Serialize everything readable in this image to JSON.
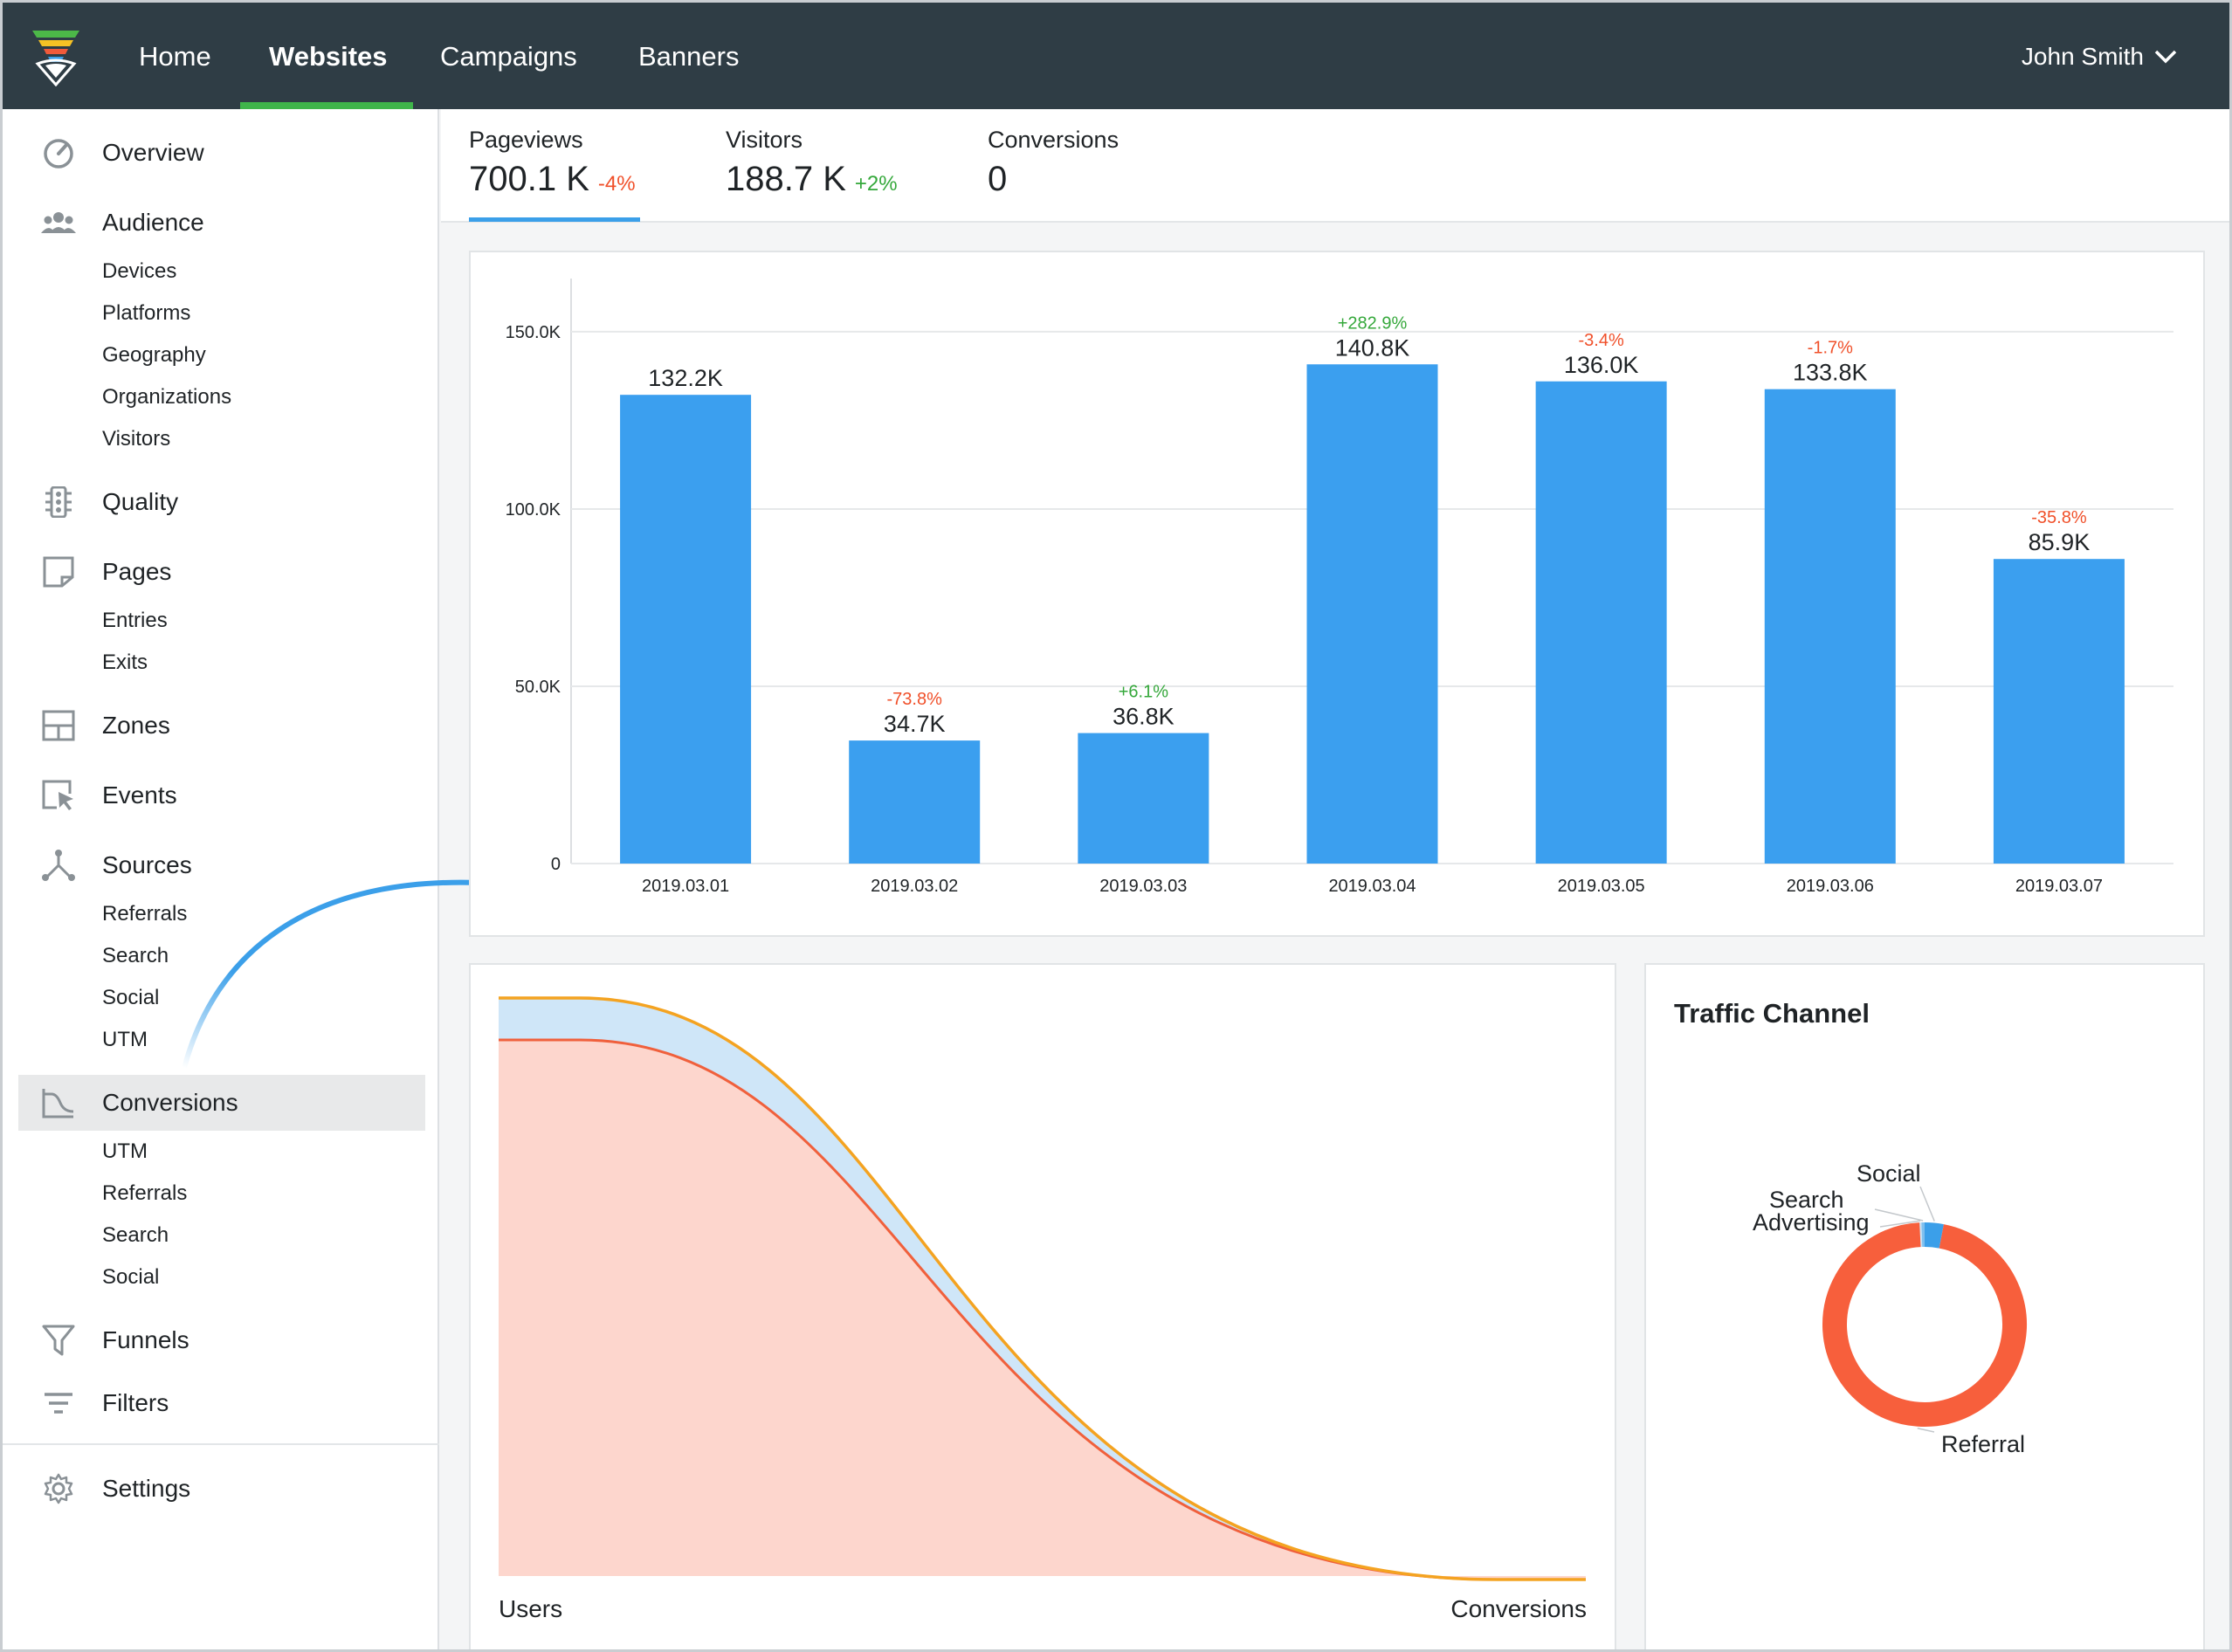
{
  "topnav": {
    "items": [
      {
        "label": "Home",
        "active": false
      },
      {
        "label": "Websites",
        "active": true
      },
      {
        "label": "Campaigns",
        "active": false
      },
      {
        "label": "Banners",
        "active": false
      }
    ],
    "user": "John Smith"
  },
  "sidebar": {
    "items": [
      {
        "label": "Overview",
        "icon": "speedometer-icon",
        "sub": []
      },
      {
        "label": "Audience",
        "icon": "people-icon",
        "sub": [
          "Devices",
          "Platforms",
          "Geography",
          "Organizations",
          "Visitors"
        ]
      },
      {
        "label": "Quality",
        "icon": "traffic-light-icon",
        "sub": []
      },
      {
        "label": "Pages",
        "icon": "page-icon",
        "sub": [
          "Entries",
          "Exits"
        ]
      },
      {
        "label": "Zones",
        "icon": "layout-grid-icon",
        "sub": []
      },
      {
        "label": "Events",
        "icon": "cursor-click-icon",
        "sub": []
      },
      {
        "label": "Sources",
        "icon": "sources-icon",
        "sub": [
          "Referrals",
          "Search",
          "Social",
          "UTM"
        ]
      },
      {
        "label": "Conversions",
        "icon": "conversion-chart-icon",
        "selected": true,
        "sub": [
          "UTM",
          "Referrals",
          "Search",
          "Social"
        ]
      },
      {
        "label": "Funnels",
        "icon": "funnel-icon",
        "sub": []
      },
      {
        "label": "Filters",
        "icon": "filter-lines-icon",
        "sub": []
      },
      {
        "label": "Settings",
        "icon": "gear-icon",
        "sub": []
      }
    ]
  },
  "metrics": [
    {
      "label": "Pageviews",
      "value": "700.1 K",
      "delta": "-4%",
      "trend": "down"
    },
    {
      "label": "Visitors",
      "value": "188.7 K",
      "delta": "+2%",
      "trend": "up"
    },
    {
      "label": "Conversions",
      "value": "0",
      "delta": "",
      "trend": ""
    }
  ],
  "chart_data": [
    {
      "type": "bar",
      "categories": [
        "2019.03.01",
        "2019.03.02",
        "2019.03.03",
        "2019.03.04",
        "2019.03.05",
        "2019.03.06",
        "2019.03.07"
      ],
      "values": [
        132.2,
        34.7,
        36.8,
        140.8,
        136.0,
        133.8,
        85.9
      ],
      "value_labels": [
        "132.2K",
        "34.7K",
        "36.8K",
        "140.8K",
        "136.0K",
        "133.8K",
        "85.9K"
      ],
      "change_labels": [
        "",
        "-73.8%",
        "+6.1%",
        "+282.9%",
        "-3.4%",
        "-1.7%",
        "-35.8%"
      ],
      "y_ticks": [
        0,
        50,
        100,
        150
      ],
      "y_tick_labels": [
        "0",
        "50.0K",
        "100.0K",
        "150.0K"
      ],
      "ylim": [
        0,
        165
      ],
      "grid": true,
      "colors": {
        "bar": "#3b9fef",
        "positive": "#35a83b",
        "negative": "#f0502a"
      }
    },
    {
      "type": "area",
      "x_labels": [
        "Users",
        "Conversions"
      ],
      "series": [
        {
          "values": [
            1.0,
            0.0
          ],
          "color": "#f4a321",
          "fill": "#cfe6f8"
        },
        {
          "values": [
            0.93,
            0.0
          ],
          "color": "#f0603c",
          "fill": "#fdd6cd"
        }
      ]
    },
    {
      "type": "pie",
      "title": "Traffic Channel",
      "labels": [
        "Referral",
        "Advertising",
        "Search",
        "Social"
      ],
      "values": [
        96.2,
        0.3,
        0.5,
        3.0
      ],
      "colors": [
        "#f75f3c",
        "#c8e3f7",
        "#7fc0ef",
        "#3b9fe9"
      ]
    }
  ]
}
